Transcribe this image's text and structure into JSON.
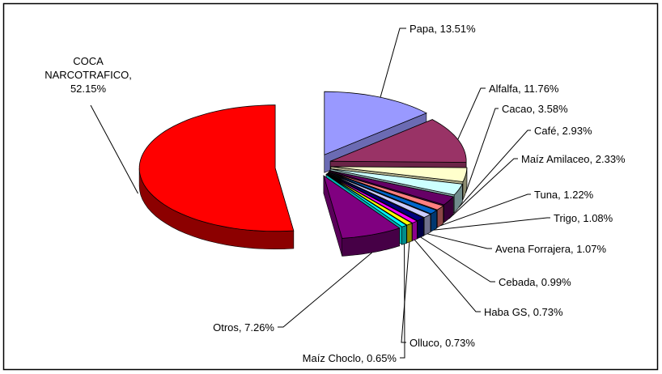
{
  "chart_data": {
    "type": "pie",
    "style": "3d-exploded",
    "slices": [
      {
        "name": "Papa",
        "value": 13.51,
        "label": "Papa, 13.51%",
        "color": "#9999ff"
      },
      {
        "name": "Alfalfa",
        "value": 11.76,
        "label": "Alfalfa, 11.76%",
        "color": "#993366"
      },
      {
        "name": "Cacao",
        "value": 3.58,
        "label": "Cacao, 3.58%",
        "color": "#ffffcc"
      },
      {
        "name": "Café",
        "value": 2.93,
        "label": "Café, 2.93%",
        "color": "#ccffff"
      },
      {
        "name": "Maíz Amilaceo",
        "value": 2.33,
        "label": "Maíz Amilaceo, 2.33%",
        "color": "#660066"
      },
      {
        "name": "Tuna",
        "value": 1.22,
        "label": "Tuna, 1.22%",
        "color": "#ff8080"
      },
      {
        "name": "Trigo",
        "value": 1.08,
        "label": "Trigo, 1.08%",
        "color": "#0066cc"
      },
      {
        "name": "Avena Forrajera",
        "value": 1.07,
        "label": "Avena Forrajera, 1.07%",
        "color": "#ccccff"
      },
      {
        "name": "Cebada",
        "value": 0.99,
        "label": "Cebada, 0.99%",
        "color": "#000080"
      },
      {
        "name": "Haba GS",
        "value": 0.73,
        "label": "Haba GS, 0.73%",
        "color": "#ff00ff"
      },
      {
        "name": "Olluco",
        "value": 0.73,
        "label": "Olluco, 0.73%",
        "color": "#ffff00"
      },
      {
        "name": "Maíz Choclo",
        "value": 0.65,
        "label": "Maíz Choclo, 0.65%",
        "color": "#00ffff"
      },
      {
        "name": "Otros",
        "value": 7.26,
        "label": "Otros, 7.26%",
        "color": "#800080"
      },
      {
        "name": "COCA NARCOTRAFICO",
        "value": 52.15,
        "label_lines": [
          "COCA",
          "NARCOTRAFICO,",
          "52.15%"
        ],
        "color": "#ff0000"
      }
    ]
  }
}
